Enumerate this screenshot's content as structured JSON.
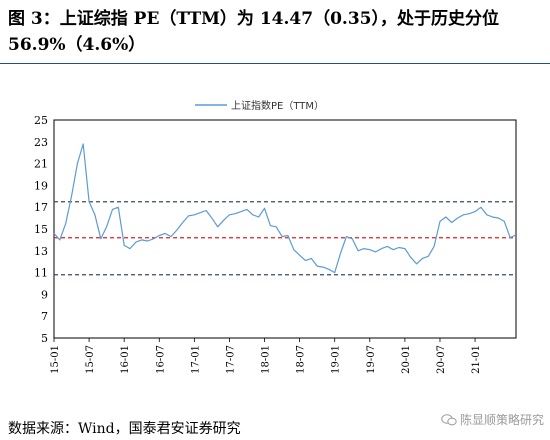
{
  "header": {
    "title": "图 3：上证综指 PE（TTM）为 14.47（0.35），处于历史分位 56.9%（4.6%）"
  },
  "footer": {
    "source": "数据来源：Wind，国泰君安证券研究",
    "watermark": "陈显顺策略研究",
    "watermark_icon": "wechat-icon"
  },
  "chart_data": {
    "type": "line",
    "title": "",
    "xlabel": "",
    "ylabel": "",
    "ylim": [
      5,
      25
    ],
    "yticks": [
      5,
      7,
      9,
      11,
      13,
      15,
      17,
      19,
      21,
      23,
      25
    ],
    "xticks": [
      "15-01",
      "15-07",
      "16-01",
      "16-07",
      "17-01",
      "17-07",
      "18-01",
      "18-07",
      "19-01",
      "19-07",
      "20-01",
      "20-07",
      "21-01"
    ],
    "legend": "top-left",
    "grid": false,
    "colors": {
      "series": "#5b9bd5",
      "band": "#3a4a6a",
      "mean": "#e02020"
    },
    "reference_lines": [
      {
        "kind": "upper-band",
        "value": 17.5,
        "style": "dashed"
      },
      {
        "kind": "mean",
        "value": 14.2,
        "style": "dashed"
      },
      {
        "kind": "lower-band",
        "value": 10.8,
        "style": "dashed"
      }
    ],
    "series": [
      {
        "name": "上证指数PE（TTM）",
        "x": [
          "15-01",
          "15-02",
          "15-03",
          "15-04",
          "15-05",
          "15-06",
          "15-07",
          "15-08",
          "15-09",
          "15-10",
          "15-11",
          "15-12",
          "16-01",
          "16-02",
          "16-03",
          "16-04",
          "16-05",
          "16-06",
          "16-07",
          "16-08",
          "16-09",
          "16-10",
          "16-11",
          "16-12",
          "17-01",
          "17-02",
          "17-03",
          "17-04",
          "17-05",
          "17-06",
          "17-07",
          "17-08",
          "17-09",
          "17-10",
          "17-11",
          "17-12",
          "18-01",
          "18-02",
          "18-03",
          "18-04",
          "18-05",
          "18-06",
          "18-07",
          "18-08",
          "18-09",
          "18-10",
          "18-11",
          "18-12",
          "19-01",
          "19-02",
          "19-03",
          "19-04",
          "19-05",
          "19-06",
          "19-07",
          "19-08",
          "19-09",
          "19-10",
          "19-11",
          "19-12",
          "20-01",
          "20-02",
          "20-03",
          "20-04",
          "20-05",
          "20-06",
          "20-07",
          "20-08",
          "20-09",
          "20-10",
          "20-11",
          "20-12",
          "21-01",
          "21-02",
          "21-03",
          "21-04",
          "21-05",
          "21-06",
          "21-07",
          "21-08"
        ],
        "values": [
          14.6,
          14.0,
          15.5,
          18.0,
          21.0,
          22.8,
          17.5,
          16.3,
          14.1,
          15.2,
          16.8,
          17.0,
          13.5,
          13.2,
          13.8,
          14.0,
          13.9,
          14.1,
          14.4,
          14.6,
          14.3,
          14.9,
          15.6,
          16.2,
          16.3,
          16.5,
          16.7,
          16.0,
          15.2,
          15.8,
          16.3,
          16.4,
          16.6,
          16.8,
          16.3,
          16.1,
          16.9,
          15.3,
          15.2,
          14.3,
          14.4,
          13.1,
          12.6,
          12.1,
          12.3,
          11.6,
          11.5,
          11.3,
          11.0,
          12.8,
          14.3,
          14.1,
          13.0,
          13.2,
          13.1,
          12.9,
          13.2,
          13.4,
          13.1,
          13.3,
          13.2,
          12.4,
          11.8,
          12.3,
          12.5,
          13.4,
          15.7,
          16.1,
          15.6,
          16.0,
          16.3,
          16.4,
          16.6,
          17.0,
          16.3,
          16.1,
          16.0,
          15.7,
          14.2,
          14.47
        ]
      }
    ]
  }
}
